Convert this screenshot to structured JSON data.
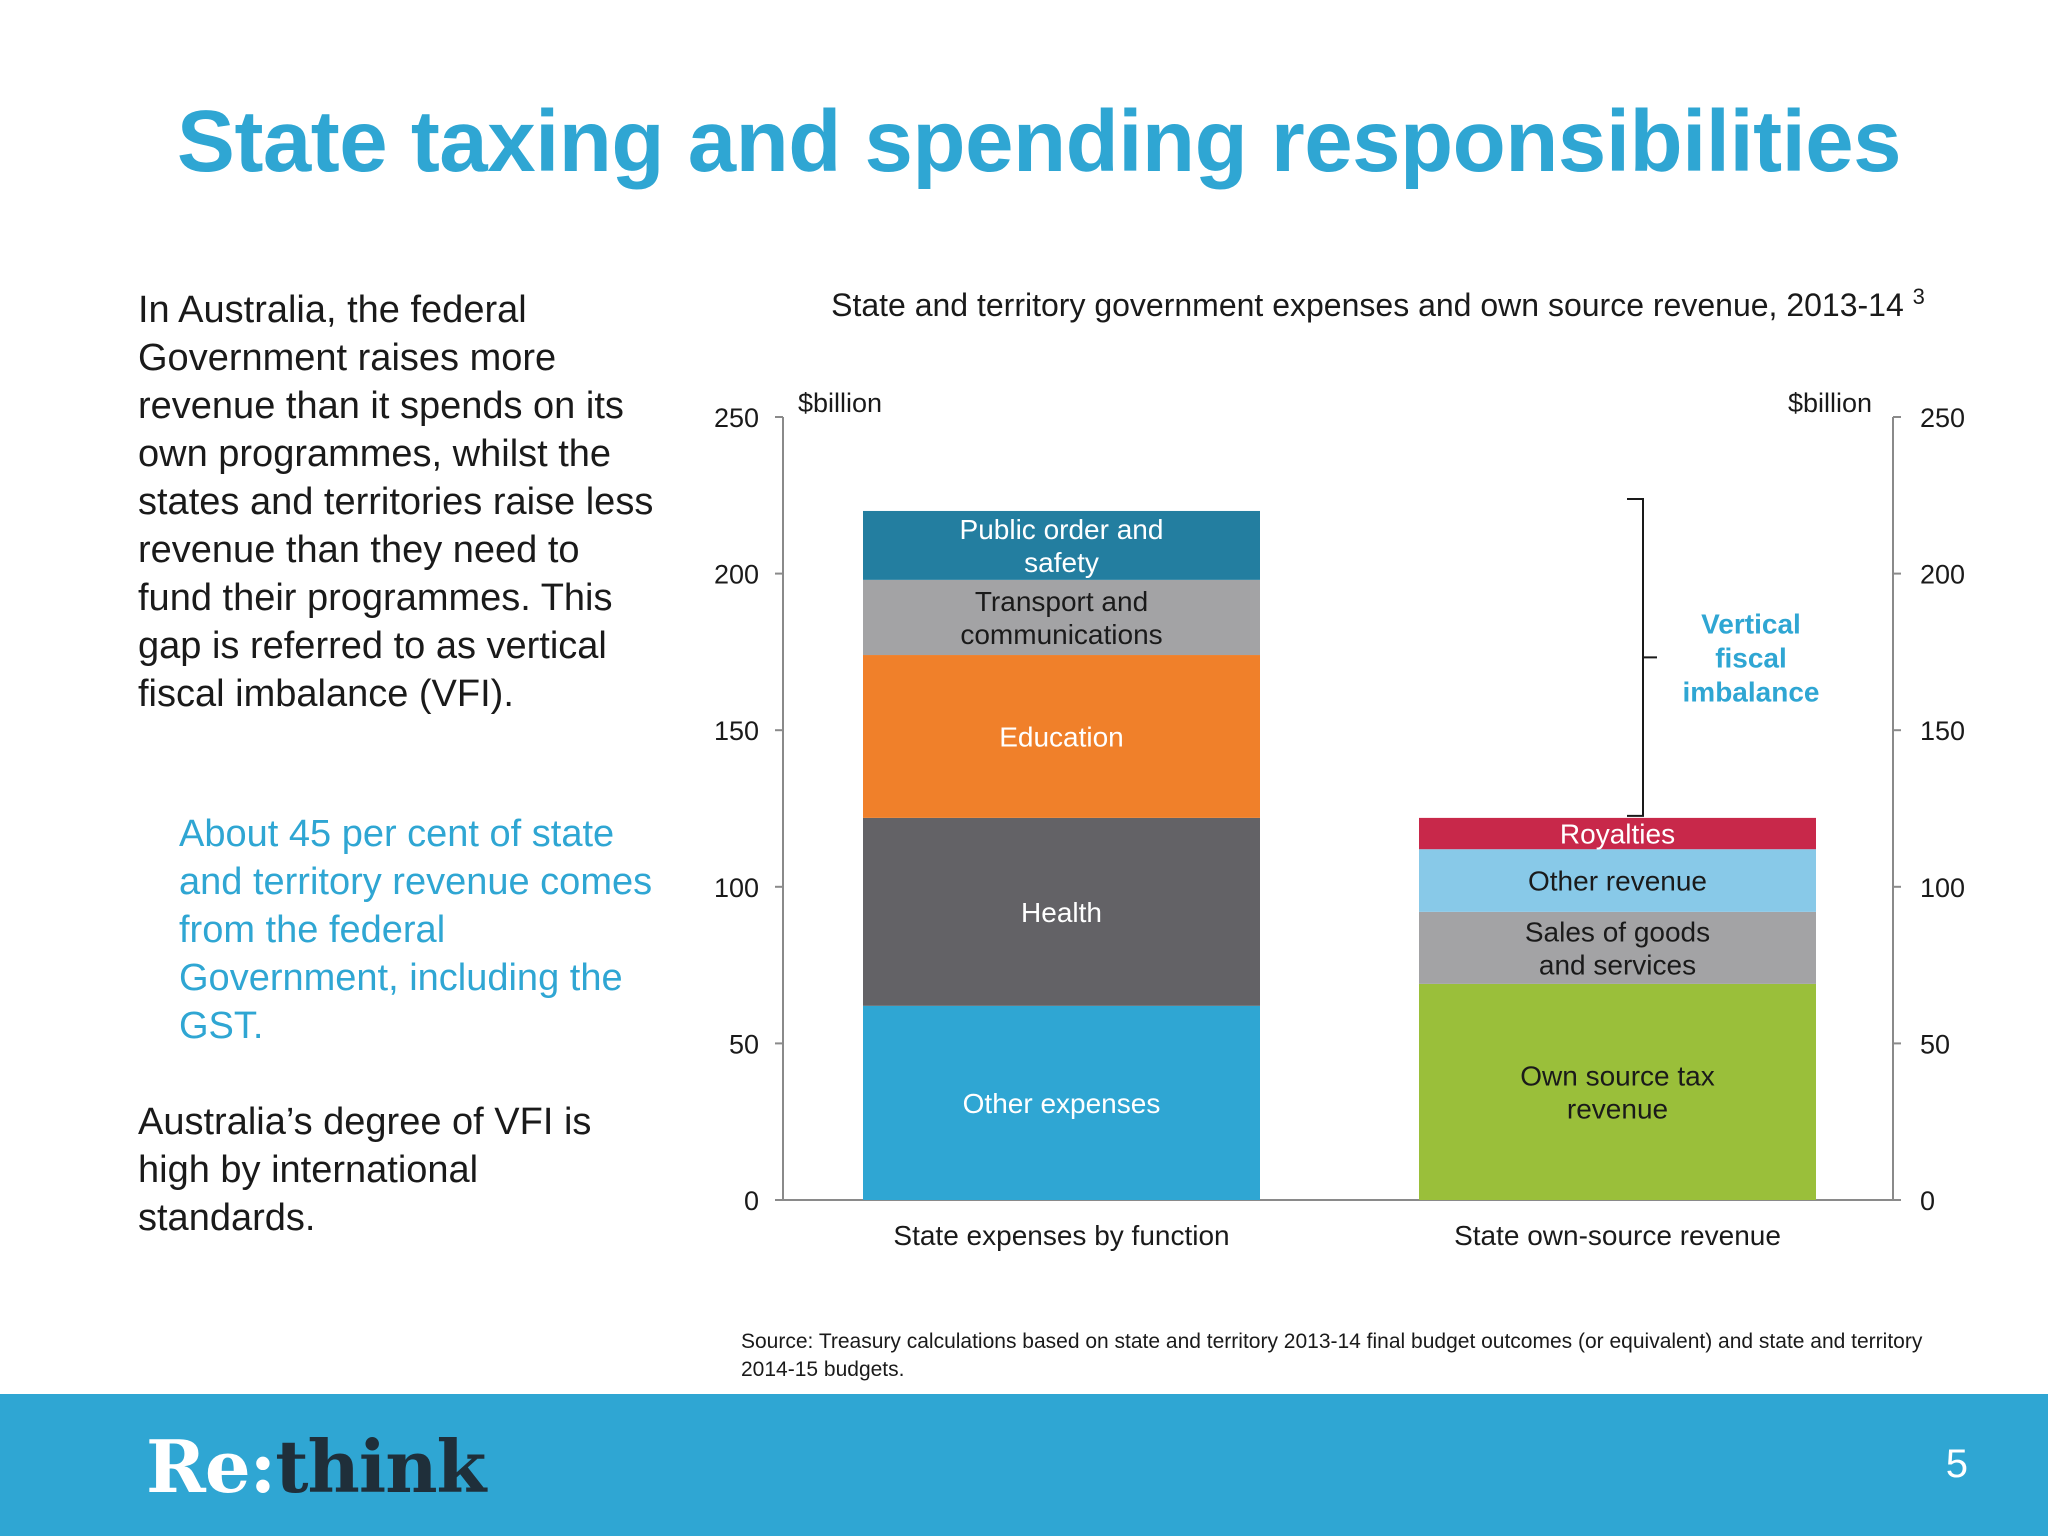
{
  "slide": {
    "title": "State taxing and spending responsibilities",
    "paragraph1": "In Australia, the federal Government raises more revenue than it spends on its own programmes, whilst the states and territories raise less revenue than they need to fund their programmes.  This gap is referred to as vertical fiscal imbalance (VFI).",
    "paragraph2": "About 45 per cent of state and territory revenue comes from the federal Government, including the GST.",
    "paragraph3": "Australia’s degree of VFI is high by international standards.",
    "source": "Source: Treasury calculations based on state and territory 2013-14 final budget outcomes (or equivalent) and state and territory 2014-15 budgets.",
    "logo_part1": "Re:",
    "logo_part2": "think",
    "page_number": "5"
  },
  "chart_data": {
    "type": "bar",
    "stacked": true,
    "title": "State and territory government expenses and own source revenue, 2013-14",
    "title_footnote": "3",
    "y_unit_left": "$billion",
    "y_unit_right": "$billion",
    "ylim": [
      0,
      250
    ],
    "yticks": [
      0,
      50,
      100,
      150,
      200,
      250
    ],
    "grid": false,
    "categories": [
      "State expenses by function",
      "State own-source revenue"
    ],
    "bars": [
      {
        "category": "State expenses by function",
        "segments": [
          {
            "label": "Other expenses",
            "value": 62,
            "color": "#2fa6d3",
            "text_color": "#ffffff"
          },
          {
            "label": "Health",
            "value": 60,
            "color": "#636266",
            "text_color": "#ffffff"
          },
          {
            "label": "Education",
            "value": 52,
            "color": "#f0802a",
            "text_color": "#ffffff"
          },
          {
            "label": "Transport and communications",
            "value": 24,
            "color": "#a3a3a5",
            "text_color": "#1a1a1a"
          },
          {
            "label": "Public order and safety",
            "value": 22,
            "color": "#237ea0",
            "text_color": "#ffffff"
          }
        ]
      },
      {
        "category": "State own-source revenue",
        "segments": [
          {
            "label": "Own source tax revenue",
            "value": 69,
            "color": "#9abf3a",
            "text_color": "#1a1a1a"
          },
          {
            "label": "Sales of goods and services",
            "value": 23,
            "color": "#a3a3a5",
            "text_color": "#1a1a1a"
          },
          {
            "label": "Other revenue",
            "value": 20,
            "color": "#88c9e8",
            "text_color": "#1a1a1a"
          },
          {
            "label": "Royalties",
            "value": 10,
            "color": "#c8284a",
            "text_color": "#ffffff"
          }
        ]
      }
    ],
    "annotation": {
      "label": "Vertical fiscal imbalance",
      "from_value": 122,
      "to_value": 220,
      "color": "#2fa6d3"
    }
  }
}
